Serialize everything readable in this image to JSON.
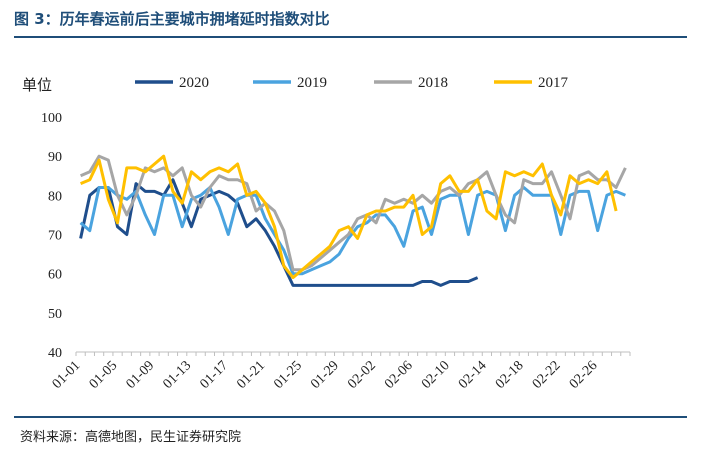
{
  "header": {
    "title": "图 3：历年春运前后主要城市拥堵延时指数对比",
    "source": "资料来源：高德地图，民生证券研究院"
  },
  "chart_data": {
    "type": "line",
    "ylabel": "单位",
    "ylim": [
      40,
      100
    ],
    "yticks": [
      "100",
      "90",
      "80",
      "70",
      "60",
      "50",
      "40"
    ],
    "x_tick_labels": [
      "01-01",
      "01-05",
      "01-09",
      "01-13",
      "01-17",
      "01-21",
      "01-25",
      "01-29",
      "02-02",
      "02-06",
      "02-10",
      "02-14",
      "02-18",
      "02-22",
      "02-26"
    ],
    "x_days": 60,
    "legend_position": "top",
    "grid": false,
    "series": [
      {
        "name": "2020",
        "color": "#1f4e8c",
        "values": [
          69,
          80,
          82,
          82,
          72,
          70,
          83,
          81,
          81,
          80,
          84,
          78,
          72,
          79,
          80,
          81,
          80,
          78,
          72,
          74,
          71,
          67,
          62,
          57,
          57,
          57,
          57,
          57,
          57,
          57,
          57,
          57,
          57,
          57,
          57,
          57,
          57,
          58,
          58,
          57,
          58,
          58,
          58,
          59
        ]
      },
      {
        "name": "2019",
        "color": "#4aa3df",
        "values": [
          73,
          71,
          82,
          82,
          80,
          79,
          81,
          75,
          70,
          80,
          80,
          72,
          79,
          80,
          82,
          77,
          70,
          79,
          80,
          80,
          74,
          70,
          66,
          60,
          60,
          61,
          62,
          63,
          65,
          69,
          72,
          73,
          75,
          75,
          72,
          67,
          76,
          77,
          70,
          79,
          80,
          80,
          70,
          80,
          81,
          80,
          71,
          80,
          82,
          80,
          80,
          80,
          70,
          80,
          81,
          81,
          71,
          80,
          81,
          80
        ]
      },
      {
        "name": "2018",
        "color": "#a6a6a6",
        "values": [
          85,
          86,
          90,
          89,
          80,
          75,
          80,
          87,
          86,
          87,
          85,
          87,
          80,
          77,
          82,
          85,
          84,
          84,
          83,
          76,
          78,
          76,
          71,
          61,
          61,
          62,
          64,
          66,
          68,
          70,
          74,
          75,
          73,
          79,
          78,
          79,
          78,
          80,
          78,
          81,
          82,
          80,
          83,
          84,
          86,
          80,
          75,
          73,
          84,
          83,
          83,
          86,
          80,
          74,
          85,
          86,
          84,
          84,
          82,
          87
        ]
      },
      {
        "name": "2017",
        "color": "#ffc000",
        "values": [
          83,
          84,
          89,
          79,
          73,
          87,
          87,
          86,
          88,
          90,
          81,
          78,
          86,
          84,
          86,
          87,
          86,
          88,
          80,
          81,
          78,
          72,
          62,
          59,
          61,
          63,
          65,
          67,
          71,
          72,
          69,
          75,
          76,
          76,
          77,
          77,
          80,
          70,
          72,
          83,
          85,
          81,
          81,
          84,
          76,
          74,
          86,
          85,
          86,
          85,
          88,
          80,
          75,
          85,
          83,
          84,
          83,
          86,
          76
        ]
      }
    ]
  }
}
